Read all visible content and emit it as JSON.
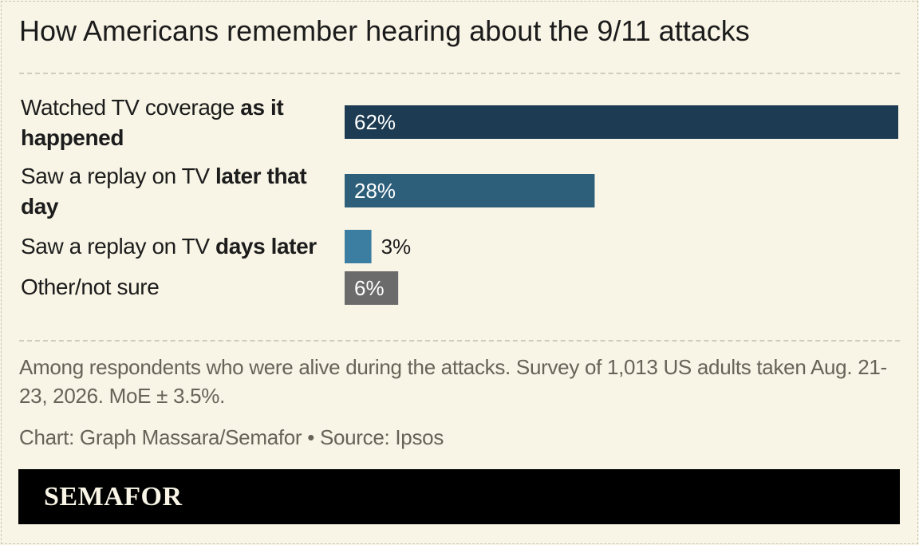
{
  "chart_data": {
    "type": "bar",
    "orientation": "horizontal",
    "title": "How Americans remember hearing about the 9/11 attacks",
    "categories": [
      "Watched TV coverage as it happened",
      "Saw a replay on TV later that day",
      "Saw a replay on TV days later",
      "Other/not sure"
    ],
    "category_parts": [
      {
        "plain": "Watched TV coverage ",
        "bold": "as it happened"
      },
      {
        "plain": "Saw a replay on TV ",
        "bold": "later that day"
      },
      {
        "plain": "Saw a replay on TV ",
        "bold": "days later"
      },
      {
        "plain": "Other/not sure",
        "bold": ""
      }
    ],
    "values": [
      62,
      28,
      3,
      6
    ],
    "value_labels": [
      "62%",
      "28%",
      "3%",
      "6%"
    ],
    "colors": [
      "#1d3b52",
      "#2d5f7a",
      "#3b7ea1",
      "#6b6b6b"
    ],
    "xlim": [
      0,
      62
    ],
    "unit": "%",
    "grid": false,
    "legend": "none"
  },
  "notes": "Among respondents who were alive during the attacks. Survey of 1,013 US adults taken Aug. 21-23, 2026. MoE ± 3.5%.",
  "credit": "Chart: Graph Massara/Semafor • Source: Ipsos",
  "footer": {
    "logo_text": "SEMAFOR"
  },
  "colors": {
    "background": "#f8f5e6",
    "footer": "#000000",
    "text": "#1c1c1c",
    "muted_text": "#666358"
  }
}
